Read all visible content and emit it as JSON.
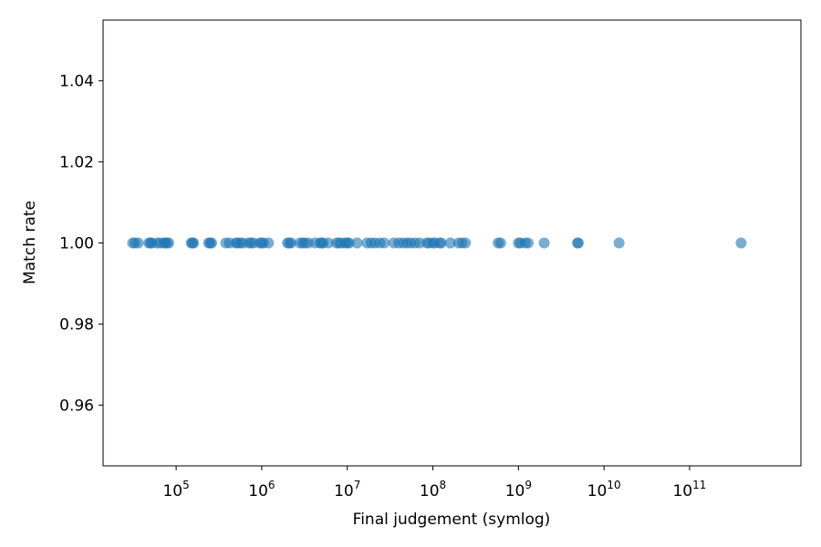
{
  "chart_data": {
    "type": "scatter",
    "title": "",
    "xlabel": "Final judgement (symlog)",
    "ylabel": "Match rate",
    "x_scale": "symlog",
    "xlim": [
      14000,
      2000000000000
    ],
    "ylim": [
      0.945,
      1.055
    ],
    "x_ticks": [
      {
        "value": 100000,
        "base": "10",
        "exp": "5"
      },
      {
        "value": 1000000,
        "base": "10",
        "exp": "6"
      },
      {
        "value": 10000000,
        "base": "10",
        "exp": "7"
      },
      {
        "value": 100000000,
        "base": "10",
        "exp": "8"
      },
      {
        "value": 1000000000,
        "base": "10",
        "exp": "9"
      },
      {
        "value": 10000000000,
        "base": "10",
        "exp": "10"
      },
      {
        "value": 100000000000,
        "base": "10",
        "exp": "11"
      }
    ],
    "y_ticks": [
      "0.96",
      "0.98",
      "1.00",
      "1.02",
      "1.04"
    ],
    "grid": false,
    "legend": "none",
    "marker_color": "#1f77b4",
    "marker_alpha": 0.6,
    "series": [
      {
        "x": [
          31000,
          33000,
          36000,
          48000,
          50000,
          52000,
          60000,
          65000,
          72000,
          75000,
          78000,
          82000,
          150000,
          155000,
          160000,
          240000,
          250000,
          260000,
          380000,
          420000,
          500000,
          520000,
          560000,
          600000,
          700000,
          750000,
          800000,
          950000,
          1000000,
          1050000,
          1200000,
          2000000,
          2100000,
          2200000,
          2800000,
          3000000,
          3200000,
          3500000,
          4200000,
          4800000,
          5000000,
          5200000,
          6000000,
          7500000,
          8000000,
          8500000,
          9500000,
          10000000,
          10500000,
          13000000,
          17000000,
          19000000,
          21000000,
          24000000,
          27000000,
          35000000,
          40000000,
          45000000,
          50000000,
          55000000,
          62000000,
          70000000,
          85000000,
          90000000,
          100000000,
          105000000,
          120000000,
          125000000,
          160000000,
          200000000,
          220000000,
          240000000,
          580000000,
          620000000,
          1000000000,
          1050000000,
          1200000000,
          1300000000,
          2000000000,
          4900000000,
          5000000000,
          15000000000,
          400000000000
        ],
        "y": [
          1.0,
          1.0,
          1.0,
          1.0,
          1.0,
          1.0,
          1.0,
          1.0,
          1.0,
          1.0,
          1.0,
          1.0,
          1.0,
          1.0,
          1.0,
          1.0,
          1.0,
          1.0,
          1.0,
          1.0,
          1.0,
          1.0,
          1.0,
          1.0,
          1.0,
          1.0,
          1.0,
          1.0,
          1.0,
          1.0,
          1.0,
          1.0,
          1.0,
          1.0,
          1.0,
          1.0,
          1.0,
          1.0,
          1.0,
          1.0,
          1.0,
          1.0,
          1.0,
          1.0,
          1.0,
          1.0,
          1.0,
          1.0,
          1.0,
          1.0,
          1.0,
          1.0,
          1.0,
          1.0,
          1.0,
          1.0,
          1.0,
          1.0,
          1.0,
          1.0,
          1.0,
          1.0,
          1.0,
          1.0,
          1.0,
          1.0,
          1.0,
          1.0,
          1.0,
          1.0,
          1.0,
          1.0,
          1.0,
          1.0,
          1.0,
          1.0,
          1.0,
          1.0,
          1.0,
          1.0,
          1.0,
          1.0,
          1.0
        ]
      }
    ]
  }
}
